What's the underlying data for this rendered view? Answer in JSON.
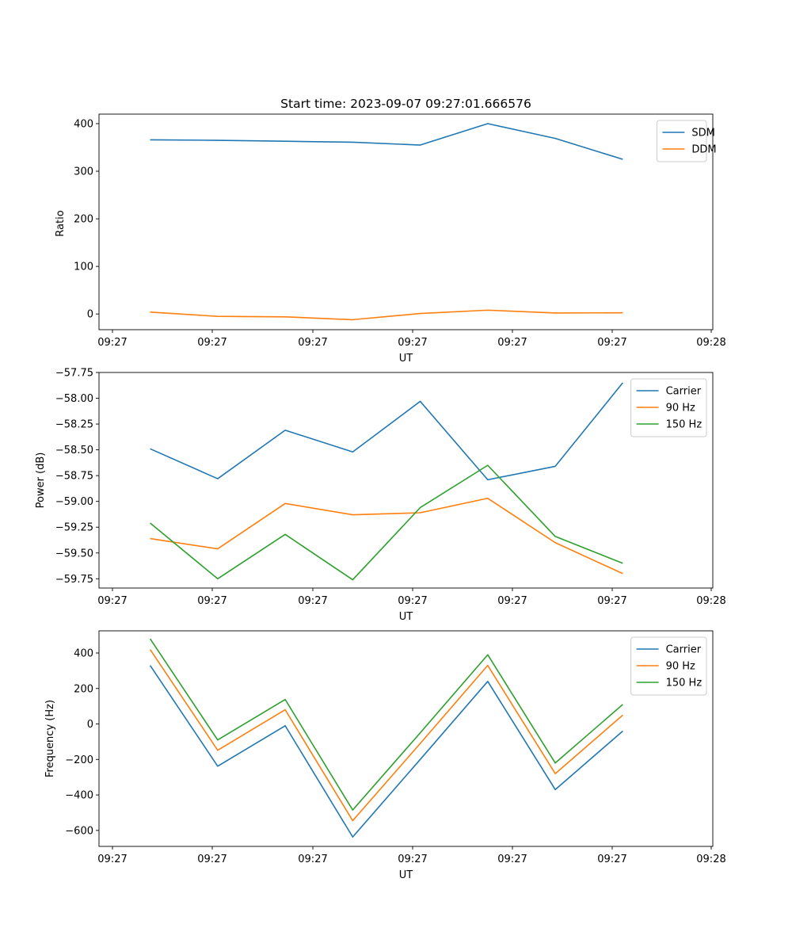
{
  "figure_title": "Start time: 2023-09-07 09:27:01.666576",
  "colors": {
    "blue": "#1f77b4",
    "orange": "#ff7f0e",
    "green": "#2ca02c"
  },
  "chart_data": [
    {
      "type": "line",
      "title": "Start time: 2023-09-07 09:27:01.666576",
      "xlabel": "UT",
      "ylabel": "Ratio",
      "xticks": [
        "09:27",
        "09:27",
        "09:27",
        "09:27",
        "09:27",
        "09:27",
        "09:28"
      ],
      "xlim": [
        0,
        6
      ],
      "x": [
        0.5,
        1.16,
        1.82,
        2.48,
        3.14,
        3.8,
        4.46,
        5.12
      ],
      "ylim": [
        -33,
        420
      ],
      "yticks": [
        0,
        100,
        200,
        300,
        400
      ],
      "legend_position": "top-right",
      "series": [
        {
          "name": "SDM",
          "color": "#1f77b4",
          "values": [
            366,
            365,
            363,
            361,
            355,
            400,
            369,
            325
          ]
        },
        {
          "name": "DDM",
          "color": "#ff7f0e",
          "values": [
            4,
            -5,
            -6,
            -12,
            1,
            8,
            2,
            2.5
          ]
        }
      ]
    },
    {
      "type": "line",
      "title": "",
      "xlabel": "UT",
      "ylabel": "Power (dB)",
      "xticks": [
        "09:27",
        "09:27",
        "09:27",
        "09:27",
        "09:27",
        "09:27",
        "09:28"
      ],
      "xlim": [
        0,
        6
      ],
      "x": [
        0.5,
        1.16,
        1.82,
        2.48,
        3.14,
        3.8,
        4.46,
        5.12
      ],
      "ylim": [
        -59.84,
        -57.75
      ],
      "yticks": [
        -57.75,
        -58.0,
        -58.25,
        -58.5,
        -58.75,
        -59.0,
        -59.25,
        -59.5,
        -59.75
      ],
      "ytick_labels": [
        "−57.75",
        "−58.00",
        "−58.25",
        "−58.50",
        "−58.75",
        "−59.00",
        "−59.25",
        "−59.50",
        "−59.75"
      ],
      "legend_position": "top-right",
      "series": [
        {
          "name": "Carrier",
          "color": "#1f77b4",
          "values": [
            -58.49,
            -58.78,
            -58.31,
            -58.52,
            -58.03,
            -58.79,
            -58.66,
            -57.85
          ]
        },
        {
          "name": "90 Hz",
          "color": "#ff7f0e",
          "values": [
            -59.36,
            -59.46,
            -59.02,
            -59.13,
            -59.11,
            -58.97,
            -59.4,
            -59.7
          ]
        },
        {
          "name": "150 Hz",
          "color": "#2ca02c",
          "values": [
            -59.21,
            -59.75,
            -59.32,
            -59.76,
            -59.06,
            -58.65,
            -59.34,
            -59.6
          ]
        }
      ]
    },
    {
      "type": "line",
      "title": "",
      "xlabel": "UT",
      "ylabel": "Frequency (Hz)",
      "xticks": [
        "09:27",
        "09:27",
        "09:27",
        "09:27",
        "09:27",
        "09:27",
        "09:28"
      ],
      "xlim": [
        0,
        6
      ],
      "x": [
        0.5,
        1.16,
        1.82,
        2.48,
        3.14,
        3.8,
        4.46,
        5.12
      ],
      "ylim": [
        -690,
        525
      ],
      "yticks": [
        -600,
        -400,
        -200,
        0,
        200,
        400
      ],
      "ytick_labels": [
        "−600",
        "−400",
        "−200",
        "0",
        "200",
        "400"
      ],
      "legend_position": "top-right",
      "series": [
        {
          "name": "Carrier",
          "color": "#1f77b4",
          "values": [
            330,
            -238,
            -10,
            -637,
            -200,
            240,
            -370,
            -40
          ]
        },
        {
          "name": "90 Hz",
          "color": "#ff7f0e",
          "values": [
            420,
            -148,
            80,
            -545,
            -110,
            330,
            -280,
            50
          ]
        },
        {
          "name": "150 Hz",
          "color": "#2ca02c",
          "values": [
            480,
            -90,
            138,
            -485,
            -50,
            390,
            -220,
            110
          ]
        }
      ]
    }
  ]
}
